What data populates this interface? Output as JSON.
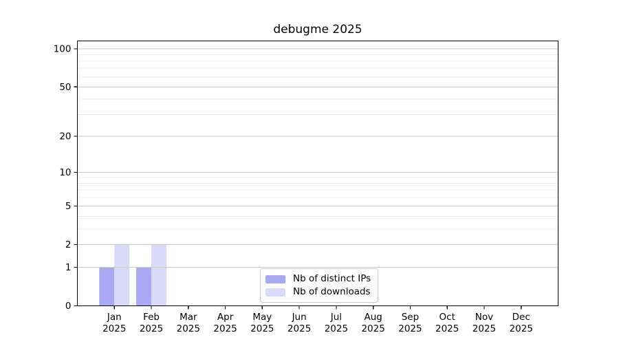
{
  "chart_data": {
    "type": "bar",
    "title": "debugme 2025",
    "categories": [
      {
        "month": "Jan",
        "year": "2025"
      },
      {
        "month": "Feb",
        "year": "2025"
      },
      {
        "month": "Mar",
        "year": "2025"
      },
      {
        "month": "Apr",
        "year": "2025"
      },
      {
        "month": "May",
        "year": "2025"
      },
      {
        "month": "Jun",
        "year": "2025"
      },
      {
        "month": "Jul",
        "year": "2025"
      },
      {
        "month": "Aug",
        "year": "2025"
      },
      {
        "month": "Sep",
        "year": "2025"
      },
      {
        "month": "Oct",
        "year": "2025"
      },
      {
        "month": "Nov",
        "year": "2025"
      },
      {
        "month": "Dec",
        "year": "2025"
      }
    ],
    "series": [
      {
        "name": "Nb of distinct IPs",
        "color": "#a8a8f4",
        "values": [
          1,
          1,
          0,
          0,
          0,
          0,
          0,
          0,
          0,
          0,
          0,
          0
        ]
      },
      {
        "name": "Nb of downloads",
        "color": "#d9d9f9",
        "values": [
          2,
          2,
          0,
          0,
          0,
          0,
          0,
          0,
          0,
          0,
          0,
          0
        ]
      }
    ],
    "y_axis": {
      "scale": "log1p",
      "tick_values": [
        0,
        1,
        2,
        5,
        10,
        20,
        50,
        100
      ],
      "tick_labels": [
        "0",
        "1",
        "2",
        "5",
        "10",
        "20",
        "50",
        "100"
      ],
      "minor_grid_values": [
        3,
        4,
        6,
        7,
        8,
        9,
        30,
        40,
        60,
        70,
        80,
        90
      ],
      "major_grid_values": [
        1,
        2,
        5,
        10,
        20,
        50,
        100
      ]
    },
    "legend_position": "bottom-center",
    "grid": true,
    "colors": {
      "axis": "#000000",
      "text": "#000000",
      "major_grid": "#c9c9c9",
      "minor_grid": "#ececec",
      "legend_border": "#cccccc",
      "background": "#ffffff"
    }
  }
}
